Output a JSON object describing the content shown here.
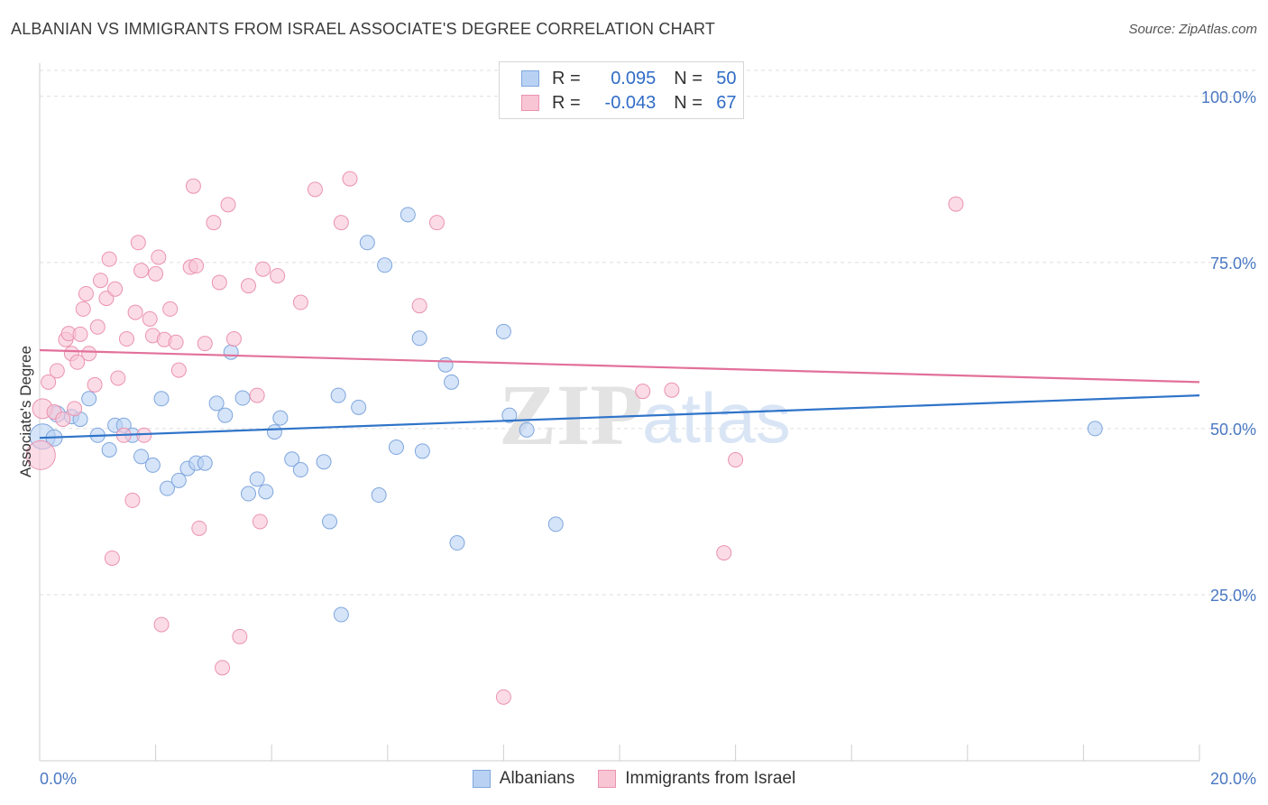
{
  "header": {
    "title": "ALBANIAN VS IMMIGRANTS FROM ISRAEL ASSOCIATE'S DEGREE CORRELATION CHART",
    "source": "Source: ZipAtlas.com"
  },
  "legend_box": {
    "rows": [
      {
        "r_label": "R = ",
        "r_value": "0.095",
        "n_label": "N = ",
        "n_value": "50"
      },
      {
        "r_label": "R = ",
        "r_value": "-0.043",
        "n_label": "N = ",
        "n_value": "67"
      }
    ]
  },
  "watermark": {
    "zip": "ZIP",
    "atlas": "atlas"
  },
  "colors": {
    "albanian_fill": "#b9d2f3",
    "albanian_stroke": "#7fa6de",
    "albanian_line": "#2f74c9",
    "israel_fill": "#f8c5d5",
    "israel_stroke": "#eb93b0",
    "israel_line": "#e2709a",
    "tick_text": "#4a78c2",
    "grid": "#dddddd"
  },
  "chart_data": {
    "type": "scatter",
    "title": "ALBANIAN VS IMMIGRANTS FROM ISRAEL ASSOCIATE'S DEGREE CORRELATION CHART",
    "xlabel": "",
    "ylabel": "Associate's Degree",
    "xlim": [
      0,
      20
    ],
    "ylim": [
      0,
      105
    ],
    "x_tick_labels": [
      "0.0%",
      "20.0%"
    ],
    "y_ticks": [
      25,
      50,
      75,
      100
    ],
    "y_tick_labels": [
      "25.0%",
      "50.0%",
      "75.0%",
      "100.0%"
    ],
    "grid": "horizontal dashed",
    "legend_position": "top-center",
    "series": [
      {
        "name": "Albanians",
        "r": 0.095,
        "n": 50,
        "trend": {
          "x": [
            0,
            20
          ],
          "y": [
            48.6,
            55.0
          ]
        },
        "points": [
          [
            0.05,
            48.8,
            14
          ],
          [
            0.25,
            48.6,
            9
          ],
          [
            0.3,
            52.2,
            9
          ],
          [
            0.55,
            51.8,
            8
          ],
          [
            0.7,
            51.4,
            8
          ],
          [
            0.85,
            54.5,
            8
          ],
          [
            1.0,
            49.0,
            8
          ],
          [
            1.2,
            46.8,
            8
          ],
          [
            1.3,
            50.5,
            8
          ],
          [
            1.45,
            50.5,
            8
          ],
          [
            1.6,
            49.0,
            8
          ],
          [
            1.75,
            45.8,
            8
          ],
          [
            1.95,
            44.5,
            8
          ],
          [
            2.1,
            54.5,
            8
          ],
          [
            2.2,
            41.0,
            8
          ],
          [
            2.4,
            42.2,
            8
          ],
          [
            2.55,
            44.0,
            8
          ],
          [
            2.7,
            44.8,
            8
          ],
          [
            2.85,
            44.8,
            8
          ],
          [
            3.05,
            53.8,
            8
          ],
          [
            3.2,
            52.0,
            8
          ],
          [
            3.3,
            61.5,
            8
          ],
          [
            3.5,
            54.6,
            8
          ],
          [
            3.6,
            40.2,
            8
          ],
          [
            3.75,
            42.4,
            8
          ],
          [
            3.9,
            40.5,
            8
          ],
          [
            4.05,
            49.5,
            8
          ],
          [
            4.15,
            51.6,
            8
          ],
          [
            4.35,
            45.4,
            8
          ],
          [
            4.5,
            43.8,
            8
          ],
          [
            4.9,
            45.0,
            8
          ],
          [
            5.0,
            36.0,
            8
          ],
          [
            5.15,
            55.0,
            8
          ],
          [
            5.2,
            22.0,
            8
          ],
          [
            5.5,
            53.2,
            8
          ],
          [
            5.65,
            78.0,
            8
          ],
          [
            5.85,
            40.0,
            8
          ],
          [
            5.95,
            74.6,
            8
          ],
          [
            6.15,
            47.2,
            8
          ],
          [
            6.35,
            82.2,
            8
          ],
          [
            6.55,
            63.6,
            8
          ],
          [
            6.6,
            46.6,
            8
          ],
          [
            7.0,
            59.6,
            8
          ],
          [
            7.1,
            57.0,
            8
          ],
          [
            7.2,
            32.8,
            8
          ],
          [
            8.0,
            64.6,
            8
          ],
          [
            8.1,
            52.0,
            8
          ],
          [
            8.4,
            49.8,
            8
          ],
          [
            8.9,
            35.6,
            8
          ],
          [
            18.2,
            50.0,
            8
          ]
        ]
      },
      {
        "name": "Immigrants from Israel",
        "r": -0.043,
        "n": 67,
        "trend": {
          "x": [
            0,
            20
          ],
          "y": [
            61.8,
            57.0
          ]
        },
        "points": [
          [
            0.02,
            46.0,
            16
          ],
          [
            0.05,
            53.0,
            11
          ],
          [
            0.15,
            57.0,
            8
          ],
          [
            0.25,
            52.5,
            8
          ],
          [
            0.3,
            58.7,
            8
          ],
          [
            0.4,
            51.4,
            8
          ],
          [
            0.45,
            63.4,
            8
          ],
          [
            0.5,
            64.3,
            8
          ],
          [
            0.55,
            61.3,
            8
          ],
          [
            0.6,
            53.0,
            8
          ],
          [
            0.65,
            60.0,
            8
          ],
          [
            0.7,
            64.2,
            8
          ],
          [
            0.75,
            68.0,
            8
          ],
          [
            0.8,
            70.3,
            8
          ],
          [
            0.85,
            61.3,
            8
          ],
          [
            0.95,
            56.6,
            8
          ],
          [
            1.0,
            65.3,
            8
          ],
          [
            1.05,
            72.3,
            8
          ],
          [
            1.15,
            69.6,
            8
          ],
          [
            1.2,
            75.5,
            8
          ],
          [
            1.25,
            30.5,
            8
          ],
          [
            1.3,
            71.0,
            8
          ],
          [
            1.35,
            57.6,
            8
          ],
          [
            1.45,
            49.0,
            8
          ],
          [
            1.5,
            63.5,
            8
          ],
          [
            1.6,
            39.2,
            8
          ],
          [
            1.65,
            67.5,
            8
          ],
          [
            1.7,
            78.0,
            8
          ],
          [
            1.75,
            73.8,
            8
          ],
          [
            1.8,
            49.0,
            8
          ],
          [
            1.9,
            66.5,
            8
          ],
          [
            1.95,
            64.0,
            8
          ],
          [
            2.0,
            73.3,
            8
          ],
          [
            2.05,
            75.8,
            8
          ],
          [
            2.1,
            20.5,
            8
          ],
          [
            2.15,
            63.4,
            8
          ],
          [
            2.25,
            68.0,
            8
          ],
          [
            2.35,
            63.0,
            8
          ],
          [
            2.4,
            58.8,
            8
          ],
          [
            2.6,
            74.3,
            8
          ],
          [
            2.65,
            86.5,
            8
          ],
          [
            2.7,
            74.5,
            8
          ],
          [
            2.75,
            35.0,
            8
          ],
          [
            2.85,
            62.8,
            8
          ],
          [
            3.0,
            81.0,
            8
          ],
          [
            3.1,
            72.0,
            8
          ],
          [
            3.15,
            14.0,
            8
          ],
          [
            3.25,
            83.7,
            8
          ],
          [
            3.35,
            63.5,
            8
          ],
          [
            3.45,
            18.7,
            8
          ],
          [
            3.6,
            71.5,
            8
          ],
          [
            3.75,
            55.0,
            8
          ],
          [
            3.8,
            36.0,
            8
          ],
          [
            3.85,
            74.0,
            8
          ],
          [
            4.1,
            73.0,
            8
          ],
          [
            4.5,
            69.0,
            8
          ],
          [
            4.75,
            86.0,
            8
          ],
          [
            5.2,
            81.0,
            8
          ],
          [
            5.35,
            87.6,
            8
          ],
          [
            6.55,
            68.5,
            8
          ],
          [
            6.85,
            81.0,
            8
          ],
          [
            8.0,
            9.6,
            8
          ],
          [
            10.4,
            55.6,
            8
          ],
          [
            10.9,
            55.8,
            8
          ],
          [
            11.8,
            31.3,
            8
          ],
          [
            12.0,
            45.3,
            8
          ],
          [
            15.8,
            83.8,
            8
          ]
        ]
      }
    ]
  },
  "bottom_legend": {
    "albanian_label": "Albanians",
    "israel_label": "Immigrants from Israel"
  }
}
